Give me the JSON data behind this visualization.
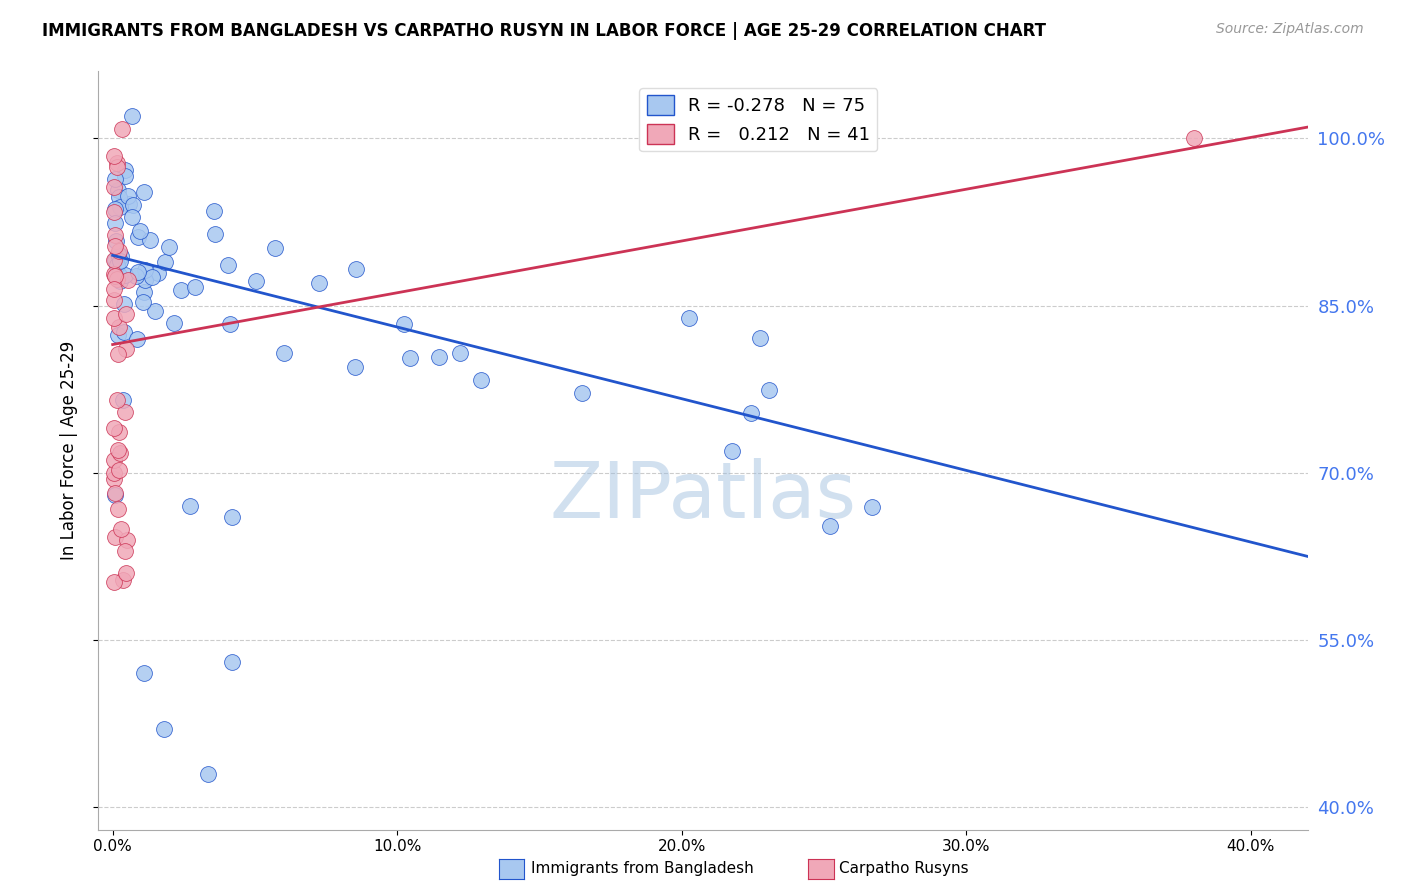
{
  "title": "IMMIGRANTS FROM BANGLADESH VS CARPATHO RUSYN IN LABOR FORCE | AGE 25-29 CORRELATION CHART",
  "source": "Source: ZipAtlas.com",
  "xlabel_ticks": [
    "0.0%",
    "10.0%",
    "20.0%",
    "30.0%",
    "40.0%"
  ],
  "xlabel_vals": [
    0.0,
    0.1,
    0.2,
    0.3,
    0.4
  ],
  "ylabel_ticks": [
    "100.0%",
    "85.0%",
    "70.0%",
    "55.0%",
    "40.0%"
  ],
  "ylabel_vals": [
    1.0,
    0.85,
    0.7,
    0.55,
    0.4
  ],
  "ylabel_label": "In Labor Force | Age 25-29",
  "xlim": [
    -0.005,
    0.42
  ],
  "ylim": [
    0.38,
    1.06
  ],
  "bangladesh_R": -0.278,
  "bangladesh_N": 75,
  "carpatho_R": 0.212,
  "carpatho_N": 41,
  "bangladesh_color": "#a8c8f0",
  "carpatho_color": "#f0a8b8",
  "bangladesh_line_color": "#2255cc",
  "carpatho_line_color": "#cc3355",
  "bang_trend_x0": 0.0,
  "bang_trend_y0": 0.895,
  "bang_trend_x1": 0.42,
  "bang_trend_y1": 0.625,
  "carp_trend_x0": 0.0,
  "carp_trend_y0": 0.815,
  "carp_trend_x1": 0.42,
  "carp_trend_y1": 1.01,
  "watermark": "ZIPatlas",
  "gridline_color": "#cccccc",
  "gridline_style": "--",
  "right_axis_color": "#4477ee"
}
